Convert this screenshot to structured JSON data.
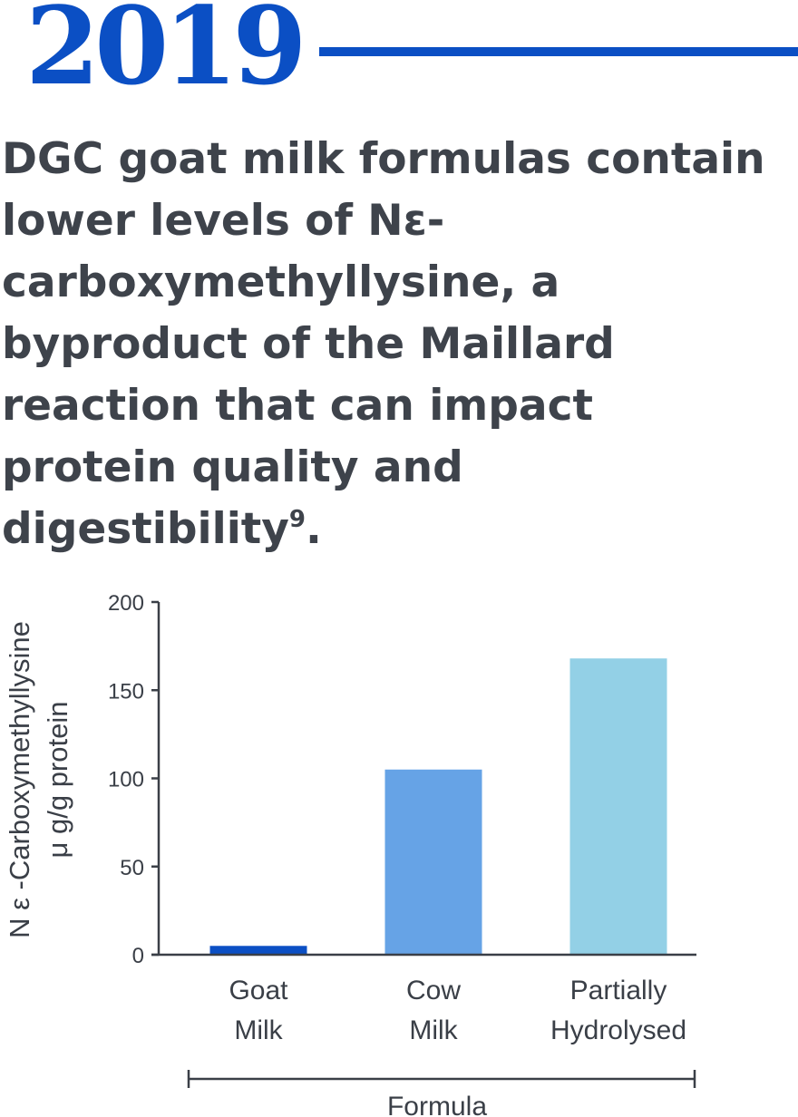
{
  "header": {
    "year": "2019",
    "headline_text": "DGC goat milk formulas contain lower levels of Nε-carboxymethyllysine, a byproduct of the Maillard reaction that can impact protein quality and digestibility",
    "headline_sup": "9",
    "headline_end": ".",
    "accent_color": "#0b4fc4"
  },
  "chart_data": {
    "type": "bar",
    "categories": [
      [
        "Goat",
        "Milk"
      ],
      [
        "Cow",
        "Milk"
      ],
      [
        "Partially",
        "Hydrolysed"
      ]
    ],
    "values": [
      5,
      105,
      168
    ],
    "colors": [
      "#0b4fc4",
      "#66a3e6",
      "#93d0e6"
    ],
    "ylabel": [
      "N ε -Carboxymethyllysine",
      "μ g/g protein"
    ],
    "xlabel": "Formula",
    "yticks": [
      0,
      50,
      100,
      150,
      200
    ],
    "ylim": [
      0,
      200
    ],
    "grid": false
  }
}
